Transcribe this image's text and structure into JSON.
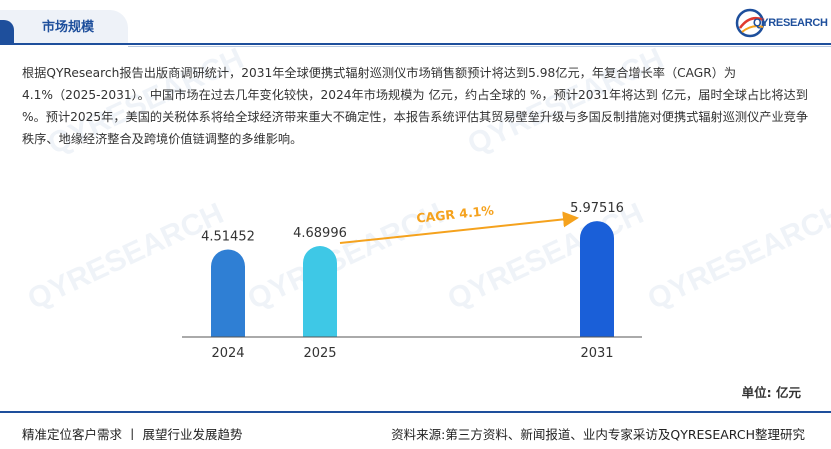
{
  "header": {
    "title": "市场规模",
    "logo_text": "QYRESEARCH"
  },
  "description": "根据QYResearch报告出版商调研统计，2031年全球便携式辐射巡测仪市场销售额预计将达到5.98亿元，年复合增长率（CAGR）为4.1%（2025-2031）。中国市场在过去几年变化较快，2024年市场规模为 亿元，约占全球的 %，预计2031年将达到 亿元，届时全球占比将达到 %。预计2025年，美国的关税体系将给全球经济带来重大不确定性，本报告系统评估其贸易壁垒升级与多国反制措施对便携式辐射巡测仪产业竞争秩序、地缘经济整合及跨境价值链调整的多维影响。",
  "watermark_text": "QYRESEARCH",
  "chart_data": {
    "type": "bar",
    "categories": [
      "2024",
      "2025",
      "2031"
    ],
    "values": [
      4.51452,
      4.68996,
      5.97516
    ],
    "value_labels": [
      "4.51452",
      "4.68996",
      "5.97516"
    ],
    "bar_colors": [
      "#2f7fd4",
      "#3ec8e6",
      "#1a5fd8"
    ],
    "annotation": {
      "text": "CAGR 4.1%",
      "from": "2025",
      "to": "2031",
      "color": "#f5a21d"
    },
    "unit_label": "单位: 亿元",
    "ylim": [
      0,
      6.6
    ]
  },
  "footer": {
    "left": "精准定位客户需求 丨 展望行业发展趋势",
    "right": "资料来源:第三方资料、新闻报道、业内专家采访及QYRESEARCH整理研究"
  }
}
